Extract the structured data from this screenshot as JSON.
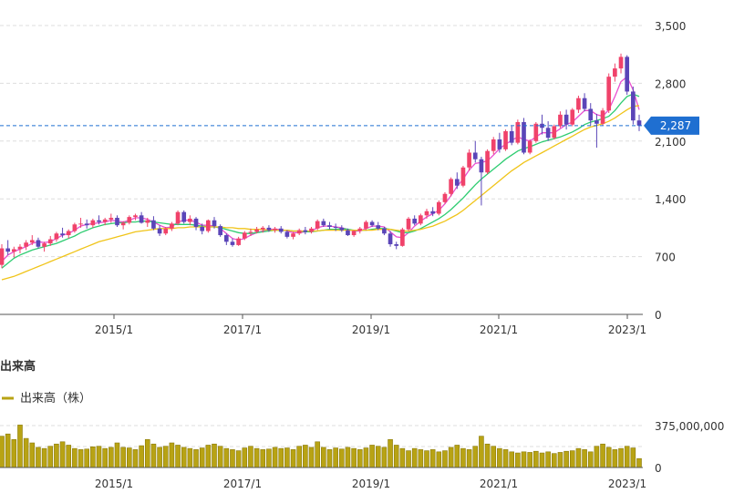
{
  "colors": {
    "up": "#f0426a",
    "down": "#5a45b8",
    "ma_short": "#e94fd0",
    "ma_mid": "#2ecc71",
    "ma_long": "#f0c419",
    "volume": "#b8a314",
    "grid": "#dddddd",
    "axis": "#555555",
    "current_line": "#1f6fd1",
    "current_tag": "#1f6fd1"
  },
  "current_price_label": "2,287",
  "volume_section_title": "出来高",
  "volume_legend_label": "出来高（株）",
  "chart_data": [
    {
      "type": "candlestick",
      "x_ticks": [
        "2015/1",
        "2017/1",
        "2019/1",
        "2021/1",
        "2023/1"
      ],
      "y_ticks": [
        "3,500",
        "2,800",
        "2,100",
        "1,400",
        "700",
        "0"
      ],
      "ylim": [
        0,
        3500
      ],
      "grid": true,
      "current_price": 2287,
      "candles": [
        [
          600,
          850,
          560,
          800
        ],
        [
          800,
          900,
          720,
          760
        ],
        [
          760,
          820,
          690,
          790
        ],
        [
          790,
          850,
          740,
          820
        ],
        [
          820,
          900,
          780,
          870
        ],
        [
          870,
          960,
          840,
          900
        ],
        [
          900,
          930,
          800,
          820
        ],
        [
          820,
          880,
          760,
          860
        ],
        [
          860,
          950,
          830,
          910
        ],
        [
          910,
          1000,
          880,
          980
        ],
        [
          980,
          1050,
          930,
          960
        ],
        [
          960,
          1030,
          920,
          1010
        ],
        [
          1010,
          1110,
          990,
          1090
        ],
        [
          1090,
          1170,
          1050,
          1100
        ],
        [
          1100,
          1150,
          1040,
          1080
        ],
        [
          1080,
          1160,
          1050,
          1140
        ],
        [
          1140,
          1200,
          1090,
          1120
        ],
        [
          1120,
          1170,
          1080,
          1150
        ],
        [
          1150,
          1220,
          1110,
          1170
        ],
        [
          1170,
          1200,
          1060,
          1080
        ],
        [
          1080,
          1130,
          1030,
          1110
        ],
        [
          1110,
          1200,
          1090,
          1180
        ],
        [
          1180,
          1220,
          1140,
          1200
        ],
        [
          1200,
          1240,
          1100,
          1110
        ],
        [
          1110,
          1170,
          1060,
          1140
        ],
        [
          1140,
          1190,
          1020,
          1040
        ],
        [
          1040,
          1080,
          950,
          980
        ],
        [
          980,
          1060,
          960,
          1040
        ],
        [
          1040,
          1120,
          1010,
          1100
        ],
        [
          1100,
          1260,
          1080,
          1240
        ],
        [
          1240,
          1260,
          1100,
          1120
        ],
        [
          1120,
          1200,
          1080,
          1160
        ],
        [
          1160,
          1180,
          1020,
          1060
        ],
        [
          1060,
          1100,
          970,
          1010
        ],
        [
          1010,
          1150,
          990,
          1140
        ],
        [
          1140,
          1180,
          1040,
          1070
        ],
        [
          1070,
          1090,
          940,
          960
        ],
        [
          960,
          980,
          840,
          880
        ],
        [
          880,
          920,
          820,
          840
        ],
        [
          840,
          940,
          830,
          920
        ],
        [
          920,
          1010,
          900,
          990
        ],
        [
          990,
          1040,
          950,
          1000
        ],
        [
          1000,
          1060,
          980,
          1030
        ],
        [
          1030,
          1070,
          990,
          1050
        ],
        [
          1050,
          1080,
          1000,
          1020
        ],
        [
          1020,
          1060,
          990,
          1040
        ],
        [
          1040,
          1070,
          980,
          1000
        ],
        [
          1000,
          1020,
          920,
          940
        ],
        [
          940,
          1000,
          910,
          980
        ],
        [
          980,
          1040,
          960,
          1020
        ],
        [
          1020,
          1060,
          970,
          1000
        ],
        [
          1000,
          1060,
          980,
          1040
        ],
        [
          1040,
          1150,
          1020,
          1130
        ],
        [
          1130,
          1160,
          1060,
          1080
        ],
        [
          1080,
          1120,
          1030,
          1060
        ],
        [
          1060,
          1100,
          1010,
          1050
        ],
        [
          1050,
          1080,
          1000,
          1020
        ],
        [
          1020,
          1040,
          950,
          960
        ],
        [
          960,
          1020,
          940,
          1010
        ],
        [
          1010,
          1060,
          980,
          1040
        ],
        [
          1040,
          1140,
          1020,
          1120
        ],
        [
          1120,
          1140,
          1060,
          1080
        ],
        [
          1080,
          1120,
          1020,
          1040
        ],
        [
          1040,
          1060,
          960,
          980
        ],
        [
          980,
          1010,
          820,
          850
        ],
        [
          850,
          880,
          790,
          830
        ],
        [
          830,
          1050,
          820,
          1030
        ],
        [
          1030,
          1180,
          1010,
          1160
        ],
        [
          1160,
          1200,
          1080,
          1100
        ],
        [
          1100,
          1220,
          1080,
          1200
        ],
        [
          1200,
          1280,
          1160,
          1250
        ],
        [
          1250,
          1300,
          1190,
          1220
        ],
        [
          1220,
          1380,
          1200,
          1360
        ],
        [
          1360,
          1480,
          1340,
          1460
        ],
        [
          1460,
          1660,
          1430,
          1640
        ],
        [
          1640,
          1720,
          1520,
          1560
        ],
        [
          1560,
          1800,
          1540,
          1780
        ],
        [
          1780,
          2000,
          1740,
          1960
        ],
        [
          1960,
          2100,
          1840,
          1880
        ],
        [
          1880,
          1910,
          1320,
          1720
        ],
        [
          1720,
          2000,
          1700,
          1980
        ],
        [
          1980,
          2150,
          1940,
          2120
        ],
        [
          2120,
          2200,
          1960,
          2000
        ],
        [
          2000,
          2240,
          1980,
          2220
        ],
        [
          2220,
          2280,
          2050,
          2080
        ],
        [
          2080,
          2360,
          2060,
          2330
        ],
        [
          2330,
          2380,
          1940,
          1960
        ],
        [
          1960,
          2120,
          1940,
          2100
        ],
        [
          2100,
          2330,
          2080,
          2310
        ],
        [
          2310,
          2420,
          2180,
          2260
        ],
        [
          2260,
          2340,
          2100,
          2140
        ],
        [
          2140,
          2300,
          2120,
          2280
        ],
        [
          2280,
          2460,
          2260,
          2420
        ],
        [
          2420,
          2480,
          2240,
          2300
        ],
        [
          2300,
          2500,
          2280,
          2480
        ],
        [
          2480,
          2650,
          2440,
          2620
        ],
        [
          2620,
          2680,
          2460,
          2490
        ],
        [
          2490,
          2560,
          2290,
          2350
        ],
        [
          2350,
          2430,
          2020,
          2310
        ],
        [
          2310,
          2500,
          2290,
          2470
        ],
        [
          2470,
          2920,
          2440,
          2880
        ],
        [
          2880,
          3040,
          2820,
          2980
        ],
        [
          2980,
          3160,
          2920,
          3120
        ],
        [
          3120,
          3140,
          2660,
          2700
        ],
        [
          2700,
          2760,
          2300,
          2350
        ],
        [
          2350,
          2420,
          2220,
          2287
        ]
      ],
      "series": [
        {
          "name": "MA short",
          "color_key": "ma_short",
          "values": [
            640,
            720,
            760,
            790,
            820,
            860,
            880,
            870,
            880,
            920,
            960,
            980,
            1020,
            1070,
            1090,
            1100,
            1110,
            1120,
            1140,
            1130,
            1120,
            1140,
            1170,
            1170,
            1150,
            1120,
            1080,
            1050,
            1060,
            1120,
            1140,
            1140,
            1120,
            1080,
            1080,
            1070,
            1040,
            980,
            920,
            900,
            920,
            960,
            990,
            1010,
            1030,
            1030,
            1030,
            1010,
            990,
            990,
            1000,
            1010,
            1050,
            1070,
            1070,
            1060,
            1050,
            1030,
            1010,
            1010,
            1040,
            1070,
            1070,
            1060,
            1000,
            940,
            930,
            990,
            1070,
            1130,
            1180,
            1220,
            1260,
            1340,
            1440,
            1550,
            1640,
            1750,
            1830,
            1840,
            1860,
            1930,
            2010,
            2060,
            2110,
            2150,
            2120,
            2100,
            2150,
            2200,
            2200,
            2200,
            2250,
            2300,
            2330,
            2400,
            2470,
            2470,
            2420,
            2400,
            2480,
            2640,
            2820,
            2880,
            2720,
            2480
          ]
        },
        {
          "name": "MA mid",
          "color_key": "ma_mid",
          "values": [
            560,
            620,
            680,
            720,
            750,
            780,
            800,
            820,
            840,
            860,
            890,
            920,
            950,
            990,
            1020,
            1050,
            1070,
            1090,
            1100,
            1110,
            1110,
            1120,
            1120,
            1130,
            1130,
            1120,
            1110,
            1100,
            1090,
            1090,
            1090,
            1090,
            1080,
            1070,
            1060,
            1060,
            1050,
            1030,
            1010,
            990,
            980,
            980,
            990,
            1000,
            1010,
            1020,
            1020,
            1020,
            1010,
            1010,
            1000,
            1000,
            1010,
            1020,
            1030,
            1030,
            1040,
            1030,
            1020,
            1020,
            1020,
            1030,
            1040,
            1040,
            1030,
            1010,
            990,
            990,
            1010,
            1040,
            1080,
            1120,
            1160,
            1210,
            1270,
            1340,
            1410,
            1490,
            1570,
            1640,
            1700,
            1760,
            1820,
            1880,
            1930,
            1980,
            2010,
            2030,
            2060,
            2090,
            2110,
            2130,
            2150,
            2180,
            2210,
            2250,
            2300,
            2330,
            2350,
            2370,
            2400,
            2470,
            2560,
            2640,
            2670,
            2640
          ]
        },
        {
          "name": "MA long",
          "color_key": "ma_long",
          "values": [
            420,
            440,
            460,
            490,
            520,
            550,
            580,
            610,
            640,
            670,
            700,
            730,
            760,
            790,
            820,
            850,
            880,
            900,
            920,
            940,
            960,
            980,
            1000,
            1010,
            1020,
            1030,
            1040,
            1040,
            1040,
            1050,
            1050,
            1060,
            1060,
            1060,
            1060,
            1060,
            1060,
            1050,
            1050,
            1040,
            1040,
            1030,
            1030,
            1030,
            1020,
            1020,
            1020,
            1020,
            1010,
            1010,
            1010,
            1010,
            1010,
            1020,
            1020,
            1020,
            1020,
            1020,
            1020,
            1020,
            1020,
            1020,
            1030,
            1030,
            1030,
            1020,
            1010,
            1010,
            1020,
            1030,
            1050,
            1070,
            1100,
            1130,
            1170,
            1210,
            1260,
            1320,
            1380,
            1440,
            1500,
            1560,
            1620,
            1680,
            1740,
            1790,
            1840,
            1880,
            1920,
            1960,
            2000,
            2040,
            2080,
            2120,
            2160,
            2200,
            2240,
            2270,
            2290,
            2310,
            2340,
            2380,
            2430,
            2480,
            2520,
            2530
          ]
        }
      ]
    },
    {
      "type": "bar",
      "title": "出来高",
      "x_ticks": [
        "2015/1",
        "2017/1",
        "2019/1",
        "2021/1",
        "2023/1"
      ],
      "y_ticks": [
        "375,000,000",
        "0"
      ],
      "ylim": [
        0,
        375000000
      ],
      "series": [
        {
          "name": "出来高（株）",
          "values": [
            280000000,
            300000000,
            250000000,
            380000000,
            260000000,
            220000000,
            180000000,
            170000000,
            190000000,
            210000000,
            230000000,
            200000000,
            170000000,
            160000000,
            165000000,
            185000000,
            190000000,
            170000000,
            180000000,
            220000000,
            180000000,
            175000000,
            160000000,
            195000000,
            250000000,
            210000000,
            180000000,
            190000000,
            220000000,
            200000000,
            180000000,
            170000000,
            160000000,
            175000000,
            200000000,
            210000000,
            190000000,
            170000000,
            160000000,
            150000000,
            175000000,
            190000000,
            170000000,
            160000000,
            165000000,
            180000000,
            170000000,
            175000000,
            160000000,
            190000000,
            200000000,
            180000000,
            230000000,
            180000000,
            160000000,
            175000000,
            165000000,
            180000000,
            170000000,
            160000000,
            175000000,
            200000000,
            190000000,
            180000000,
            250000000,
            200000000,
            170000000,
            150000000,
            170000000,
            160000000,
            150000000,
            160000000,
            140000000,
            150000000,
            180000000,
            200000000,
            170000000,
            160000000,
            190000000,
            280000000,
            210000000,
            190000000,
            170000000,
            160000000,
            140000000,
            130000000,
            140000000,
            135000000,
            145000000,
            130000000,
            140000000,
            125000000,
            135000000,
            145000000,
            150000000,
            170000000,
            160000000,
            140000000,
            190000000,
            210000000,
            180000000,
            160000000,
            170000000,
            190000000,
            175000000,
            80000000
          ]
        }
      ]
    }
  ]
}
